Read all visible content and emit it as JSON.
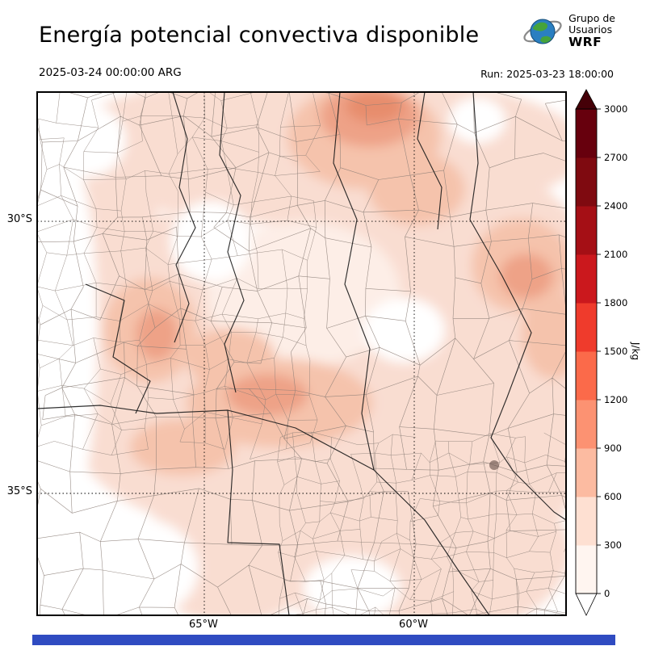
{
  "header": {
    "title": "Energía potencial convectiva disponible",
    "logo": {
      "line1": "Grupo de",
      "line2": "Usuarios",
      "line3": "WRF"
    }
  },
  "subheader": {
    "valid": "2025-03-24 00:00:00 ARG",
    "run": "Run: 2025-03-23 18:00:00"
  },
  "map": {
    "lat_labels": [
      {
        "text": "30°S",
        "frac": 0.247
      },
      {
        "text": "35°S",
        "frac": 0.767
      }
    ],
    "lon_labels": [
      {
        "text": "65°W",
        "frac": 0.316
      },
      {
        "text": "60°W",
        "frac": 0.713
      }
    ]
  },
  "colorbar": {
    "unit": "J/kg",
    "ticks": [
      "0",
      "300",
      "600",
      "900",
      "1200",
      "1500",
      "1800",
      "2100",
      "2400",
      "2700",
      "3000"
    ],
    "colors_bottom_to_top": [
      "#fff5f0",
      "#fee0d2",
      "#fcbba1",
      "#fc9272",
      "#fb6a4a",
      "#ef3b2c",
      "#cb181d",
      "#a50f15",
      "#7f0a10",
      "#67000d"
    ],
    "over_color": "#450008",
    "under_color": "#ffffff"
  },
  "footer": {
    "bar_color": "#2f4bc1"
  }
}
